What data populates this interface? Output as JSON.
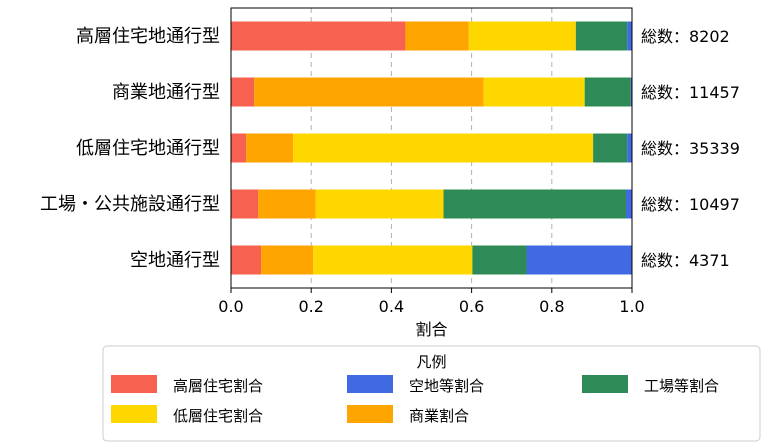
{
  "chart_data": {
    "type": "bar",
    "orientation": "horizontal",
    "stacked": true,
    "categories": [
      "高層住宅地通行型",
      "商業地通行型",
      "低層住宅地通行型",
      "工場・公共施設通行型",
      "空地通行型"
    ],
    "series": [
      {
        "name": "高層住宅割合",
        "color": "#F76150",
        "values": [
          0.435,
          0.058,
          0.038,
          0.068,
          0.075
        ]
      },
      {
        "name": "商業割合",
        "color": "#FFA500",
        "values": [
          0.158,
          0.572,
          0.117,
          0.143,
          0.13
        ]
      },
      {
        "name": "低層住宅割合",
        "color": "#FFD700",
        "values": [
          0.267,
          0.252,
          0.748,
          0.319,
          0.397
        ]
      },
      {
        "name": "工場等割合",
        "color": "#2E8B57",
        "values": [
          0.128,
          0.115,
          0.085,
          0.455,
          0.135
        ]
      },
      {
        "name": "空地等割合",
        "color": "#4169E1",
        "values": [
          0.012,
          0.003,
          0.012,
          0.015,
          0.263
        ]
      }
    ],
    "totals": [
      "総数：8202",
      "総数：11457",
      "総数：35339",
      "総数：10497",
      "総数：4371"
    ],
    "xlabel": "割合",
    "xlim": [
      0,
      1
    ],
    "xticks": [
      "0.0",
      "0.2",
      "0.4",
      "0.6",
      "0.8",
      "1.0"
    ],
    "grid": "x-dashed",
    "legend_title": "凡例",
    "legend_position": "bottom",
    "legend_order": [
      0,
      2,
      4,
      1,
      3
    ]
  }
}
